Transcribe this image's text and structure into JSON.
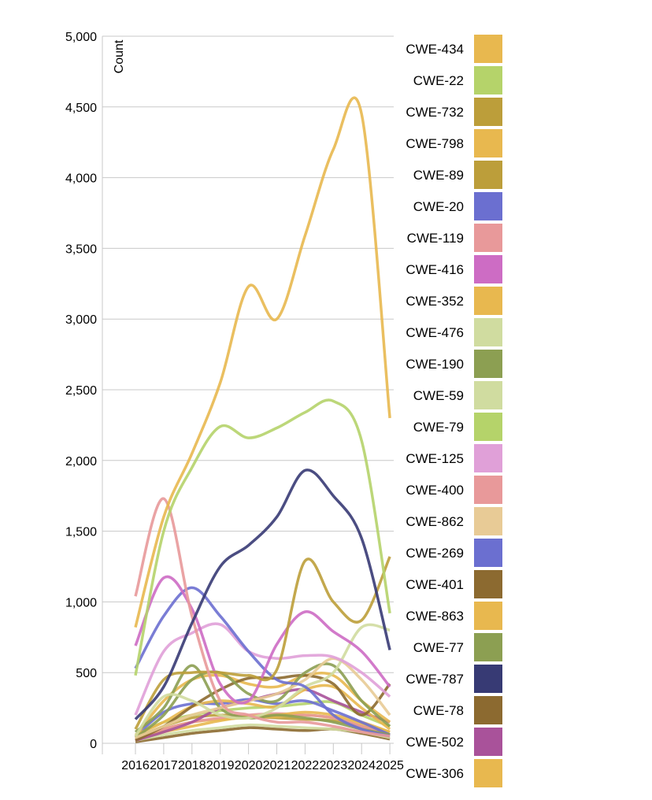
{
  "chart_data": {
    "type": "line",
    "title": "",
    "xlabel": "",
    "ylabel": "Count",
    "ylim": [
      0,
      5000
    ],
    "yticks": [
      0,
      500,
      1000,
      1500,
      2000,
      2500,
      3000,
      3500,
      4000,
      4500,
      5000
    ],
    "ytick_labels": [
      "0",
      "500",
      "1,000",
      "1,500",
      "2,000",
      "2,500",
      "3,000",
      "3,500",
      "4,000",
      "4,500",
      "5,000"
    ],
    "x": [
      "2016",
      "2017",
      "2018",
      "2019",
      "2020",
      "2021",
      "2022",
      "2023",
      "2024",
      "2025"
    ],
    "grid": "horizontal",
    "curve": "smooth",
    "legend_position": "right",
    "series": [
      {
        "name": "CWE-434",
        "color": "#e8b84f",
        "values": [
          820,
          1600,
          2050,
          2550,
          3230,
          3000,
          3590,
          4200,
          4450,
          2300
        ]
      },
      {
        "name": "CWE-22",
        "color": "#b5d36a",
        "values": [
          60,
          150,
          200,
          230,
          250,
          260,
          280,
          290,
          200,
          120
        ]
      },
      {
        "name": "CWE-732",
        "color": "#bc9e3a",
        "values": [
          40,
          120,
          180,
          200,
          190,
          180,
          170,
          160,
          120,
          60
        ]
      },
      {
        "name": "CWE-798",
        "color": "#e8b84f",
        "values": [
          30,
          100,
          150,
          170,
          180,
          190,
          200,
          180,
          140,
          80
        ]
      },
      {
        "name": "CWE-89",
        "color": "#bc9e3a",
        "values": [
          100,
          450,
          500,
          500,
          480,
          520,
          1290,
          1000,
          870,
          1320
        ]
      },
      {
        "name": "CWE-20",
        "color": "#6b6fd0",
        "values": [
          530,
          900,
          1100,
          900,
          650,
          450,
          400,
          200,
          100,
          50
        ]
      },
      {
        "name": "CWE-119",
        "color": "#e8999a",
        "values": [
          1040,
          1730,
          900,
          300,
          200,
          150,
          150,
          120,
          80,
          50
        ]
      },
      {
        "name": "CWE-416",
        "color": "#cd6cc4",
        "values": [
          690,
          1170,
          950,
          420,
          300,
          700,
          930,
          790,
          650,
          400
        ]
      },
      {
        "name": "CWE-352",
        "color": "#e8b84f",
        "values": [
          50,
          300,
          450,
          480,
          420,
          400,
          480,
          480,
          300,
          150
        ]
      },
      {
        "name": "CWE-476",
        "color": "#d0dca0",
        "values": [
          50,
          330,
          300,
          200,
          180,
          250,
          400,
          500,
          820,
          800
        ]
      },
      {
        "name": "CWE-190",
        "color": "#8c9f52",
        "values": [
          80,
          250,
          550,
          250,
          180,
          200,
          180,
          150,
          100,
          60
        ]
      },
      {
        "name": "CWE-59",
        "color": "#d0dca0",
        "values": [
          20,
          60,
          90,
          110,
          130,
          120,
          110,
          100,
          80,
          40
        ]
      },
      {
        "name": "CWE-79",
        "color": "#b5d36a",
        "values": [
          480,
          1500,
          1950,
          2240,
          2160,
          2230,
          2340,
          2420,
          2140,
          920
        ]
      },
      {
        "name": "CWE-125",
        "color": "#e0a0d8",
        "values": [
          200,
          650,
          780,
          840,
          650,
          600,
          620,
          610,
          500,
          330
        ]
      },
      {
        "name": "CWE-400",
        "color": "#e8999a",
        "values": [
          30,
          100,
          150,
          180,
          200,
          210,
          200,
          180,
          120,
          60
        ]
      },
      {
        "name": "CWE-862",
        "color": "#e8cb96",
        "values": [
          40,
          120,
          200,
          250,
          300,
          350,
          450,
          600,
          450,
          200
        ]
      },
      {
        "name": "CWE-269",
        "color": "#6b6fd0",
        "values": [
          50,
          220,
          280,
          280,
          310,
          280,
          300,
          230,
          150,
          60
        ]
      },
      {
        "name": "CWE-401",
        "color": "#8c6a30",
        "values": [
          10,
          40,
          70,
          90,
          110,
          100,
          90,
          100,
          70,
          30
        ]
      },
      {
        "name": "CWE-863",
        "color": "#e8b84f",
        "values": [
          60,
          150,
          260,
          300,
          280,
          260,
          380,
          400,
          250,
          100
        ]
      },
      {
        "name": "CWE-77",
        "color": "#8c9f52",
        "values": [
          40,
          200,
          450,
          500,
          350,
          300,
          500,
          550,
          300,
          120
        ]
      },
      {
        "name": "CWE-787",
        "color": "#373a74",
        "values": [
          170,
          400,
          850,
          1250,
          1400,
          1600,
          1930,
          1750,
          1450,
          660
        ]
      },
      {
        "name": "CWE-78",
        "color": "#8c6a30",
        "values": [
          20,
          120,
          260,
          380,
          460,
          460,
          480,
          420,
          200,
          420
        ]
      },
      {
        "name": "CWE-502",
        "color": "#a9529a",
        "values": [
          20,
          80,
          150,
          250,
          300,
          350,
          380,
          300,
          220,
          150
        ]
      },
      {
        "name": "CWE-306",
        "color": "#e8b84f",
        "values": [
          30,
          80,
          120,
          160,
          190,
          200,
          220,
          200,
          150,
          80
        ]
      }
    ]
  }
}
